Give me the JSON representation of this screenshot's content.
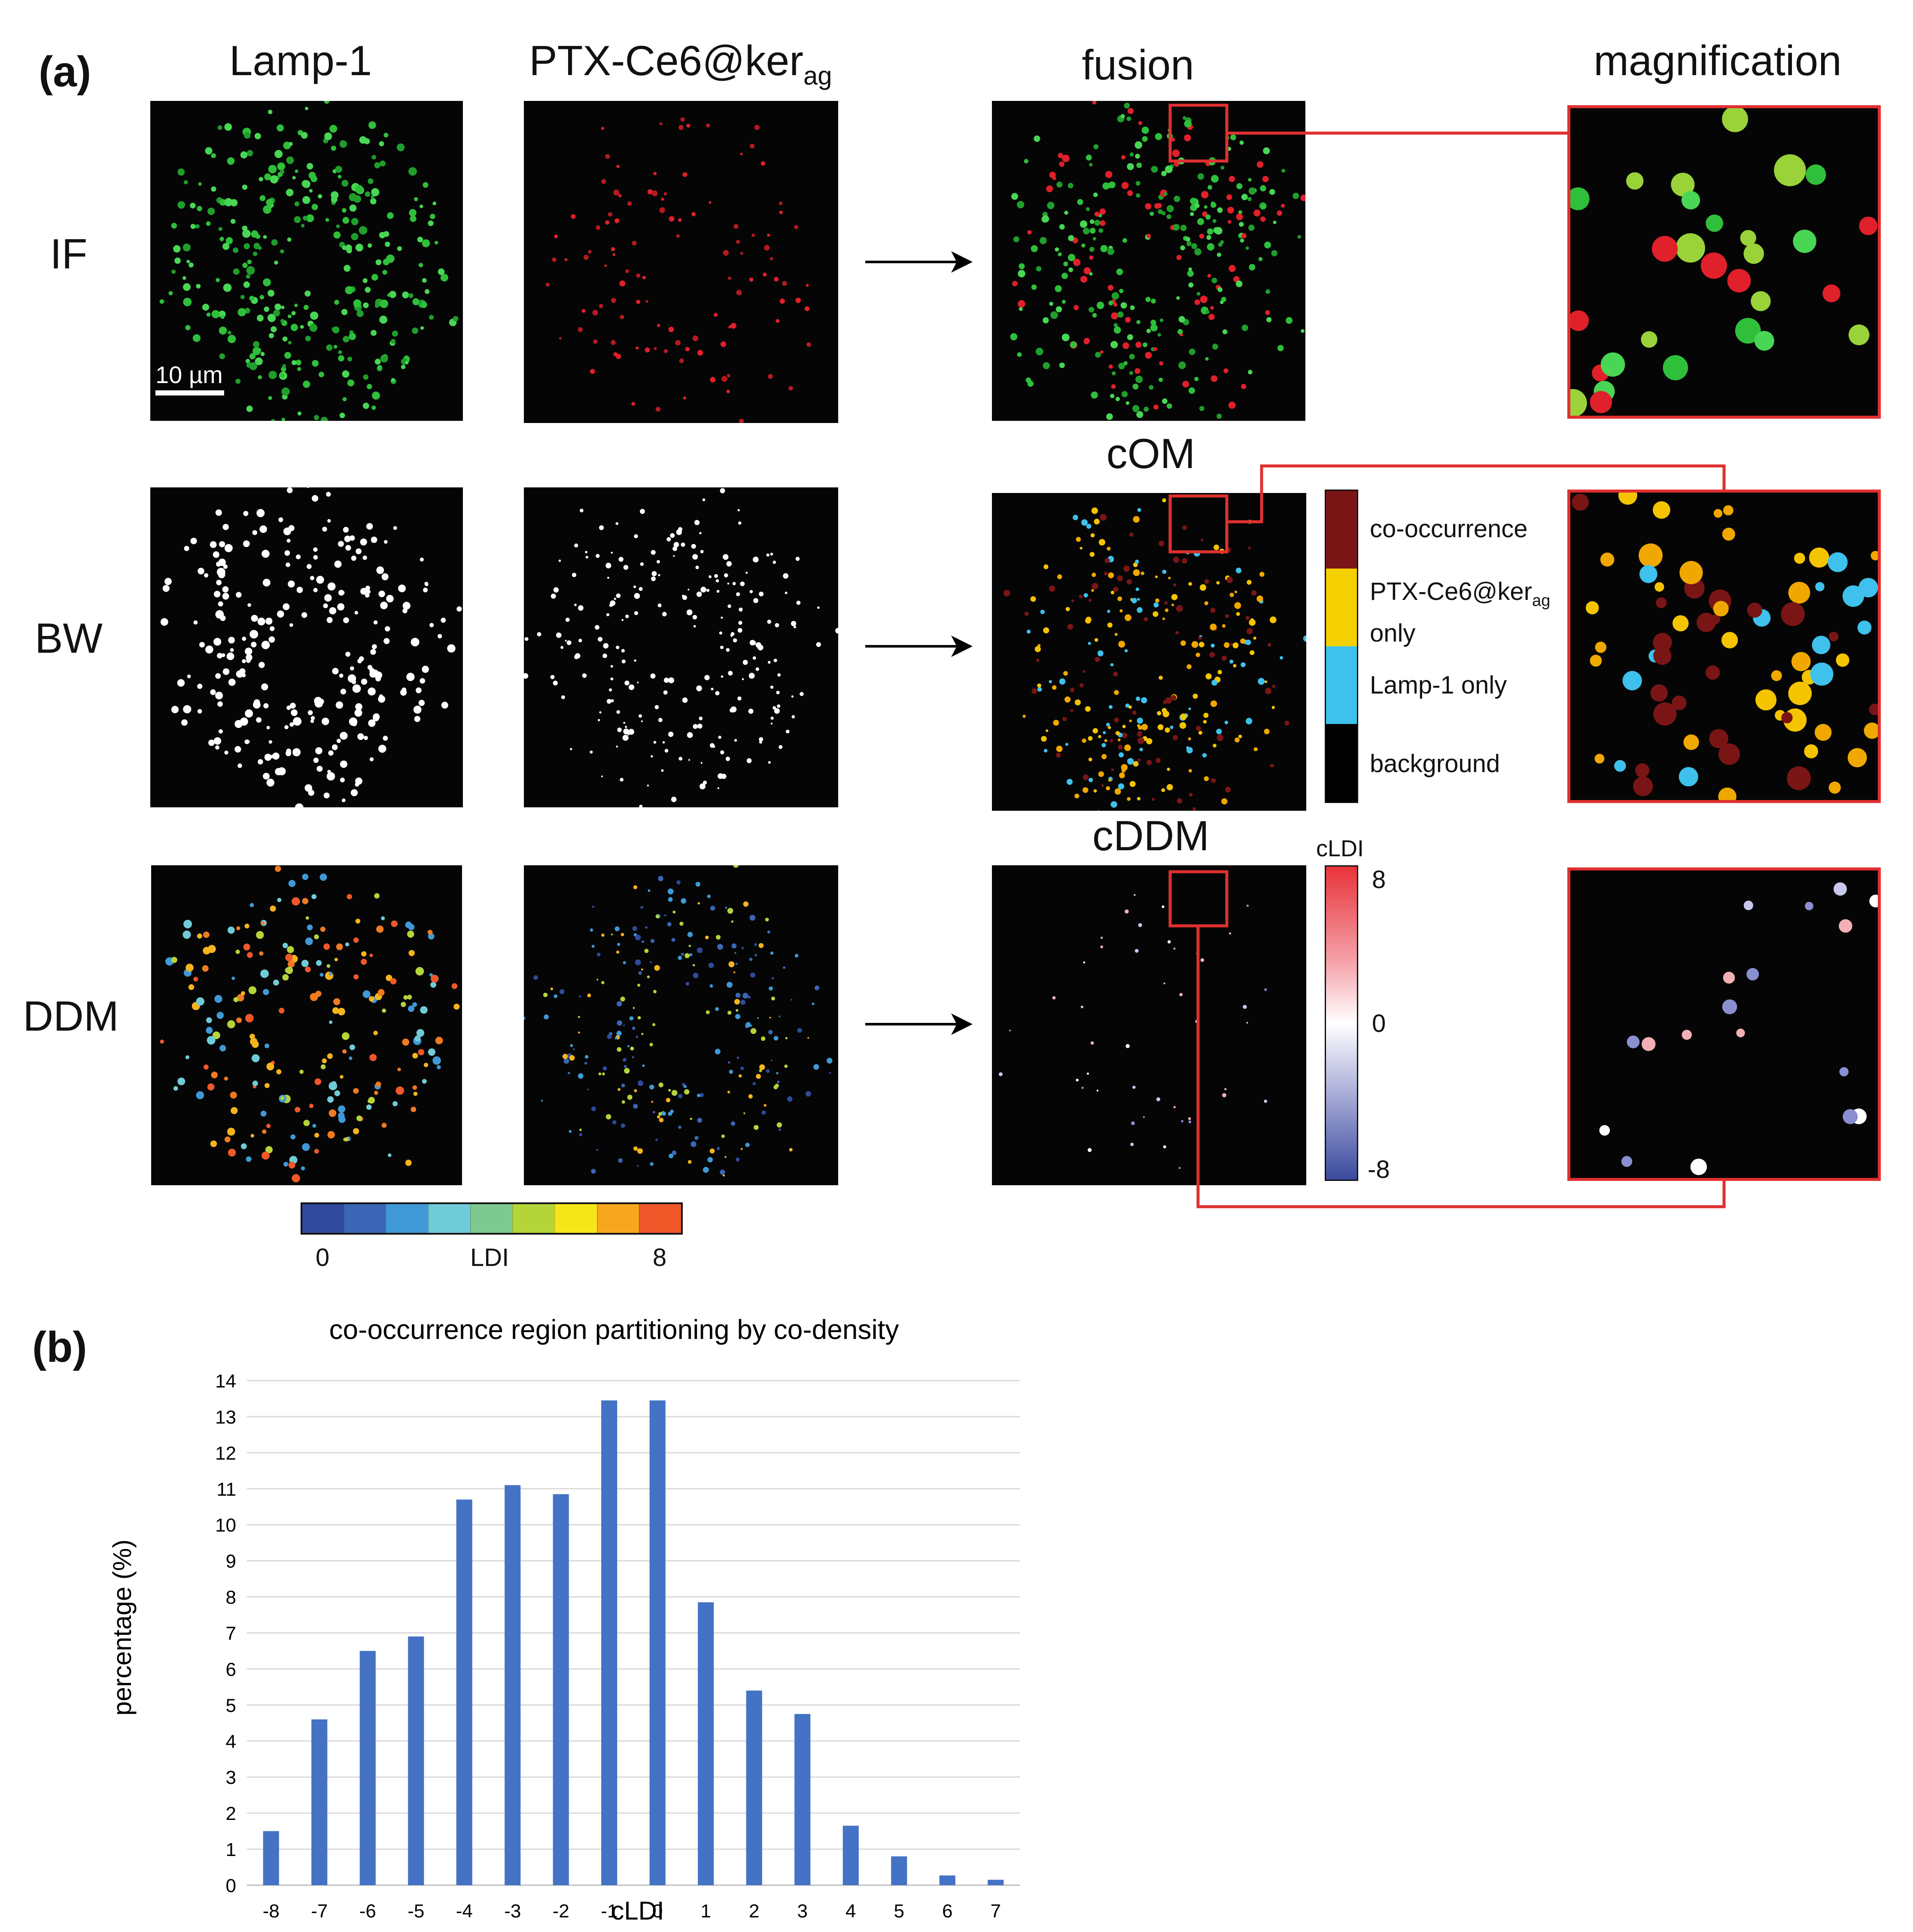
{
  "panel_a": {
    "label": "(a)",
    "columns": {
      "lamp": "Lamp-1",
      "ptx_main": "PTX-Ce6@ker",
      "ptx_sub": "ag",
      "fusion": "fusion",
      "magnification": "magnification"
    },
    "rows": {
      "if": "IF",
      "bw": "BW",
      "ddm": "DDM"
    },
    "scale_bar": "10 µm",
    "com_title": "cOM",
    "cddm_title": "cDDM",
    "com_legend": {
      "co_occurrence": "co-occurrence",
      "ptx_only_main": "PTX-Ce6@ker",
      "ptx_only_sub": "ag",
      "ptx_only_suffix": "only",
      "lamp_only": "Lamp-1 only",
      "background": "background",
      "colors": {
        "co_occurrence": "#7a1515",
        "ptx_only": "#f5d000",
        "lamp_only": "#3ec1ec",
        "background": "#000000"
      }
    },
    "cldi_legend": {
      "title": "cLDI",
      "max": "8",
      "mid": "0",
      "min": "-8"
    },
    "ldi_bar": {
      "min": "0",
      "label": "LDI",
      "max": "8",
      "colors": [
        "#2f4a9c",
        "#3a66b5",
        "#3f99d6",
        "#6fcbd8",
        "#7ec990",
        "#b4d43a",
        "#f3e71a",
        "#f7a71e",
        "#f0582a"
      ]
    }
  },
  "panel_b": {
    "label": "(b)",
    "chart_data": {
      "type": "bar",
      "title": "co-occurrence region partitioning by co-density",
      "xlabel": "cLDI",
      "ylabel": "percentage (%)",
      "categories": [
        "-8",
        "-7",
        "-6",
        "-5",
        "-4",
        "-3",
        "-2",
        "-1",
        "0",
        "1",
        "2",
        "3",
        "4",
        "5",
        "6",
        "7"
      ],
      "values": [
        1.5,
        4.6,
        6.5,
        6.9,
        10.7,
        11.1,
        10.85,
        13.45,
        13.45,
        7.85,
        5.4,
        4.75,
        1.65,
        0.8,
        0.27,
        0.15
      ],
      "ylim": [
        0,
        14
      ],
      "yticks": [
        "0",
        "1",
        "2",
        "3",
        "4",
        "5",
        "6",
        "7",
        "8",
        "9",
        "10",
        "11",
        "12",
        "13",
        "14"
      ],
      "grid": true,
      "bar_color": "#4472c4"
    }
  }
}
